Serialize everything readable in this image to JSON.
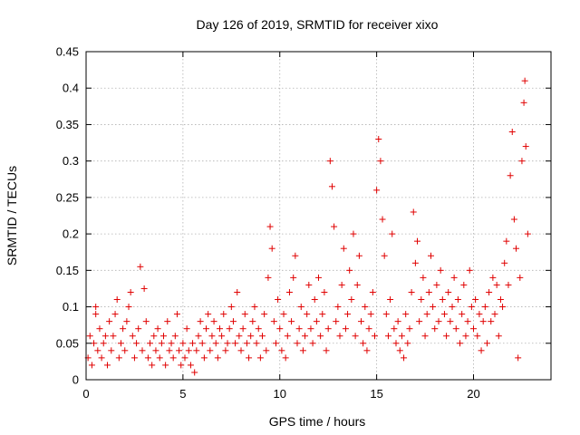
{
  "chart_data": {
    "type": "scatter",
    "title": "Day 126 of 2019, SRMTID for receiver xixo",
    "xlabel": "GPS time / hours",
    "ylabel": "SRMTID / TECUs",
    "xlim": [
      0,
      24
    ],
    "ylim": [
      0,
      0.45
    ],
    "xticks": [
      0,
      5,
      10,
      15,
      20
    ],
    "xtick_labels": [
      "0",
      "5",
      "10",
      "15",
      "20"
    ],
    "yticks": [
      0,
      0.05,
      0.1,
      0.15,
      0.2,
      0.25,
      0.3,
      0.35,
      0.4,
      0.45
    ],
    "ytick_labels": [
      "0",
      "0.05",
      "0.1",
      "0.15",
      "0.2",
      "0.25",
      "0.3",
      "0.35",
      "0.4",
      "0.45"
    ],
    "grid": true,
    "marker": "plus",
    "marker_color": "#e00000",
    "series": [
      {
        "name": "SRMTID",
        "points": [
          [
            0.1,
            0.03
          ],
          [
            0.2,
            0.06
          ],
          [
            0.3,
            0.02
          ],
          [
            0.4,
            0.05
          ],
          [
            0.5,
            0.09
          ],
          [
            0.5,
            0.1
          ],
          [
            0.6,
            0.04
          ],
          [
            0.7,
            0.07
          ],
          [
            0.8,
            0.03
          ],
          [
            0.9,
            0.05
          ],
          [
            1.0,
            0.06
          ],
          [
            1.1,
            0.02
          ],
          [
            1.2,
            0.08
          ],
          [
            1.3,
            0.04
          ],
          [
            1.4,
            0.06
          ],
          [
            1.5,
            0.09
          ],
          [
            1.6,
            0.11
          ],
          [
            1.7,
            0.03
          ],
          [
            1.8,
            0.05
          ],
          [
            1.9,
            0.07
          ],
          [
            2.0,
            0.04
          ],
          [
            2.1,
            0.08
          ],
          [
            2.2,
            0.1
          ],
          [
            2.3,
            0.12
          ],
          [
            2.4,
            0.06
          ],
          [
            2.5,
            0.03
          ],
          [
            2.6,
            0.05
          ],
          [
            2.7,
            0.07
          ],
          [
            2.8,
            0.155
          ],
          [
            2.9,
            0.04
          ],
          [
            3.0,
            0.125
          ],
          [
            3.1,
            0.08
          ],
          [
            3.2,
            0.03
          ],
          [
            3.3,
            0.05
          ],
          [
            3.4,
            0.02
          ],
          [
            3.5,
            0.06
          ],
          [
            3.6,
            0.04
          ],
          [
            3.7,
            0.07
          ],
          [
            3.8,
            0.03
          ],
          [
            3.9,
            0.05
          ],
          [
            4.0,
            0.06
          ],
          [
            4.1,
            0.02
          ],
          [
            4.2,
            0.08
          ],
          [
            4.3,
            0.04
          ],
          [
            4.4,
            0.05
          ],
          [
            4.5,
            0.03
          ],
          [
            4.6,
            0.06
          ],
          [
            4.7,
            0.09
          ],
          [
            4.8,
            0.04
          ],
          [
            4.9,
            0.02
          ],
          [
            5.0,
            0.05
          ],
          [
            5.1,
            0.03
          ],
          [
            5.2,
            0.07
          ],
          [
            5.3,
            0.04
          ],
          [
            5.4,
            0.02
          ],
          [
            5.5,
            0.05
          ],
          [
            5.6,
            0.01
          ],
          [
            5.7,
            0.04
          ],
          [
            5.8,
            0.06
          ],
          [
            5.9,
            0.08
          ],
          [
            6.0,
            0.05
          ],
          [
            6.1,
            0.03
          ],
          [
            6.2,
            0.07
          ],
          [
            6.3,
            0.09
          ],
          [
            6.4,
            0.04
          ],
          [
            6.5,
            0.06
          ],
          [
            6.6,
            0.08
          ],
          [
            6.7,
            0.05
          ],
          [
            6.8,
            0.03
          ],
          [
            6.9,
            0.07
          ],
          [
            7.0,
            0.06
          ],
          [
            7.1,
            0.09
          ],
          [
            7.2,
            0.04
          ],
          [
            7.3,
            0.05
          ],
          [
            7.4,
            0.07
          ],
          [
            7.5,
            0.1
          ],
          [
            7.6,
            0.08
          ],
          [
            7.7,
            0.05
          ],
          [
            7.8,
            0.12
          ],
          [
            7.9,
            0.06
          ],
          [
            8.0,
            0.04
          ],
          [
            8.1,
            0.07
          ],
          [
            8.2,
            0.09
          ],
          [
            8.3,
            0.05
          ],
          [
            8.4,
            0.03
          ],
          [
            8.5,
            0.06
          ],
          [
            8.6,
            0.08
          ],
          [
            8.7,
            0.1
          ],
          [
            8.8,
            0.05
          ],
          [
            8.9,
            0.07
          ],
          [
            9.0,
            0.03
          ],
          [
            9.1,
            0.06
          ],
          [
            9.2,
            0.09
          ],
          [
            9.3,
            0.04
          ],
          [
            9.4,
            0.14
          ],
          [
            9.5,
            0.21
          ],
          [
            9.6,
            0.18
          ],
          [
            9.7,
            0.08
          ],
          [
            9.8,
            0.05
          ],
          [
            9.9,
            0.11
          ],
          [
            10.0,
            0.07
          ],
          [
            10.1,
            0.04
          ],
          [
            10.2,
            0.09
          ],
          [
            10.3,
            0.03
          ],
          [
            10.4,
            0.06
          ],
          [
            10.5,
            0.12
          ],
          [
            10.6,
            0.08
          ],
          [
            10.7,
            0.14
          ],
          [
            10.8,
            0.17
          ],
          [
            10.9,
            0.05
          ],
          [
            11.0,
            0.07
          ],
          [
            11.1,
            0.1
          ],
          [
            11.2,
            0.04
          ],
          [
            11.3,
            0.06
          ],
          [
            11.4,
            0.09
          ],
          [
            11.5,
            0.13
          ],
          [
            11.6,
            0.07
          ],
          [
            11.7,
            0.05
          ],
          [
            11.8,
            0.11
          ],
          [
            11.9,
            0.08
          ],
          [
            12.0,
            0.14
          ],
          [
            12.1,
            0.06
          ],
          [
            12.2,
            0.09
          ],
          [
            12.3,
            0.12
          ],
          [
            12.4,
            0.04
          ],
          [
            12.5,
            0.07
          ],
          [
            12.6,
            0.3
          ],
          [
            12.7,
            0.265
          ],
          [
            12.8,
            0.21
          ],
          [
            12.9,
            0.08
          ],
          [
            13.0,
            0.1
          ],
          [
            13.1,
            0.06
          ],
          [
            13.2,
            0.13
          ],
          [
            13.3,
            0.18
          ],
          [
            13.4,
            0.07
          ],
          [
            13.5,
            0.09
          ],
          [
            13.6,
            0.15
          ],
          [
            13.7,
            0.11
          ],
          [
            13.8,
            0.2
          ],
          [
            13.9,
            0.06
          ],
          [
            14.0,
            0.13
          ],
          [
            14.1,
            0.17
          ],
          [
            14.2,
            0.08
          ],
          [
            14.3,
            0.05
          ],
          [
            14.4,
            0.1
          ],
          [
            14.5,
            0.04
          ],
          [
            14.6,
            0.07
          ],
          [
            14.7,
            0.09
          ],
          [
            14.8,
            0.12
          ],
          [
            14.9,
            0.06
          ],
          [
            15.0,
            0.26
          ],
          [
            15.1,
            0.33
          ],
          [
            15.2,
            0.3
          ],
          [
            15.3,
            0.22
          ],
          [
            15.4,
            0.17
          ],
          [
            15.5,
            0.09
          ],
          [
            15.6,
            0.06
          ],
          [
            15.7,
            0.11
          ],
          [
            15.8,
            0.2
          ],
          [
            15.9,
            0.07
          ],
          [
            16.0,
            0.05
          ],
          [
            16.1,
            0.08
          ],
          [
            16.2,
            0.04
          ],
          [
            16.3,
            0.06
          ],
          [
            16.4,
            0.03
          ],
          [
            16.5,
            0.09
          ],
          [
            16.6,
            0.05
          ],
          [
            16.7,
            0.07
          ],
          [
            16.8,
            0.12
          ],
          [
            16.9,
            0.23
          ],
          [
            17.0,
            0.16
          ],
          [
            17.1,
            0.19
          ],
          [
            17.2,
            0.08
          ],
          [
            17.3,
            0.11
          ],
          [
            17.4,
            0.14
          ],
          [
            17.5,
            0.06
          ],
          [
            17.6,
            0.09
          ],
          [
            17.7,
            0.12
          ],
          [
            17.8,
            0.17
          ],
          [
            17.9,
            0.1
          ],
          [
            18.0,
            0.07
          ],
          [
            18.1,
            0.13
          ],
          [
            18.2,
            0.08
          ],
          [
            18.3,
            0.15
          ],
          [
            18.4,
            0.11
          ],
          [
            18.5,
            0.09
          ],
          [
            18.6,
            0.06
          ],
          [
            18.7,
            0.12
          ],
          [
            18.8,
            0.08
          ],
          [
            18.9,
            0.1
          ],
          [
            19.0,
            0.14
          ],
          [
            19.1,
            0.07
          ],
          [
            19.2,
            0.11
          ],
          [
            19.3,
            0.05
          ],
          [
            19.4,
            0.09
          ],
          [
            19.5,
            0.13
          ],
          [
            19.6,
            0.06
          ],
          [
            19.7,
            0.08
          ],
          [
            19.8,
            0.15
          ],
          [
            19.9,
            0.1
          ],
          [
            20.0,
            0.07
          ],
          [
            20.1,
            0.11
          ],
          [
            20.2,
            0.06
          ],
          [
            20.3,
            0.09
          ],
          [
            20.4,
            0.04
          ],
          [
            20.5,
            0.08
          ],
          [
            20.6,
            0.1
          ],
          [
            20.7,
            0.05
          ],
          [
            20.8,
            0.12
          ],
          [
            20.9,
            0.08
          ],
          [
            21.0,
            0.14
          ],
          [
            21.1,
            0.09
          ],
          [
            21.2,
            0.13
          ],
          [
            21.3,
            0.06
          ],
          [
            21.4,
            0.11
          ],
          [
            21.5,
            0.1
          ],
          [
            21.6,
            0.16
          ],
          [
            21.7,
            0.19
          ],
          [
            21.8,
            0.13
          ],
          [
            21.9,
            0.28
          ],
          [
            22.0,
            0.34
          ],
          [
            22.1,
            0.22
          ],
          [
            22.2,
            0.18
          ],
          [
            22.3,
            0.03
          ],
          [
            22.4,
            0.14
          ],
          [
            22.5,
            0.3
          ],
          [
            22.6,
            0.38
          ],
          [
            22.65,
            0.41
          ],
          [
            22.7,
            0.32
          ],
          [
            22.8,
            0.2
          ]
        ]
      }
    ]
  }
}
